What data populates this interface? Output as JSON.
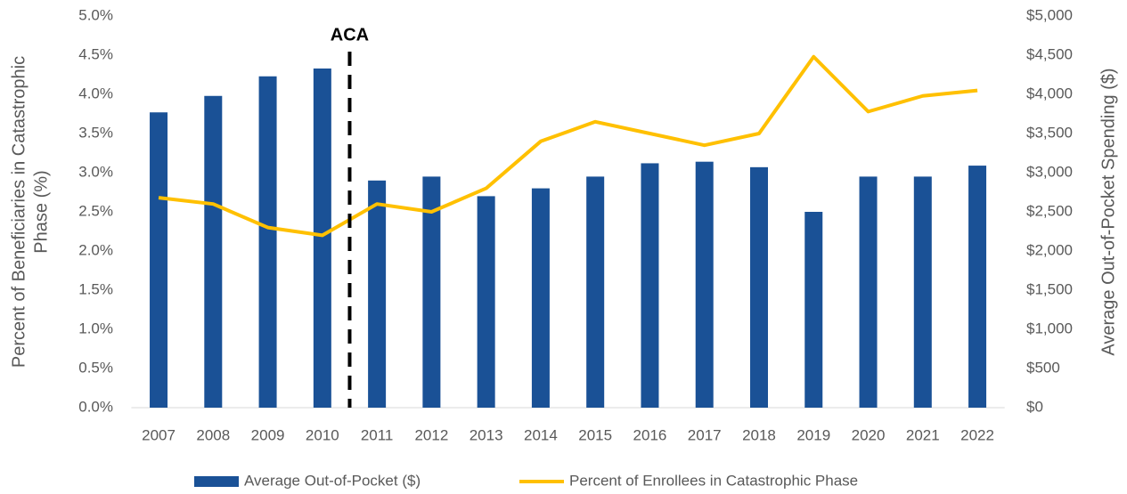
{
  "chart_data": {
    "type": "bar_line",
    "categories": [
      "2007",
      "2008",
      "2009",
      "2010",
      "2011",
      "2012",
      "2013",
      "2014",
      "2015",
      "2016",
      "2017",
      "2018",
      "2019",
      "2020",
      "2021",
      "2022"
    ],
    "series": [
      {
        "name": "Average Out-of-Pocket ($)",
        "type": "bar",
        "axis": "y2",
        "color": "#1a5196",
        "values": [
          3770,
          3980,
          4230,
          4330,
          2900,
          2950,
          2700,
          2800,
          2950,
          3120,
          3140,
          3070,
          2500,
          2950,
          2950,
          3090
        ]
      },
      {
        "name": "Percent of Enrollees in Catastrophic Phase",
        "type": "line",
        "axis": "y",
        "color": "#ffc000",
        "values": [
          2.68,
          2.6,
          2.3,
          2.2,
          2.6,
          2.5,
          2.8,
          3.4,
          3.65,
          3.5,
          3.35,
          3.5,
          4.48,
          3.78,
          3.98,
          4.05
        ]
      }
    ],
    "y_label": [
      "Percent of Beneficiaries in Catastrophic",
      "Phase (%)"
    ],
    "y2_label": "Average Out-of-Pocket Spending ($)",
    "annotation": "ACA",
    "ylim": [
      0,
      5
    ],
    "yticks": [
      {
        "value": 0,
        "label": "0.0%"
      },
      {
        "value": 0.5,
        "label": "0.5%"
      },
      {
        "value": 1,
        "label": "1.0%"
      },
      {
        "value": 1.5,
        "label": "1.5%"
      },
      {
        "value": 2,
        "label": "2.0%"
      },
      {
        "value": 2.5,
        "label": "2.5%"
      },
      {
        "value": 3,
        "label": "3.0%"
      },
      {
        "value": 3.5,
        "label": "3.5%"
      },
      {
        "value": 4,
        "label": "4.0%"
      },
      {
        "value": 4.5,
        "label": "4.5%"
      },
      {
        "value": 5,
        "label": "5.0%"
      }
    ],
    "y2lim": [
      0,
      5000
    ],
    "y2ticks": [
      {
        "value": 0,
        "label": "$0"
      },
      {
        "value": 500,
        "label": "$500"
      },
      {
        "value": 1000,
        "label": "$1,000"
      },
      {
        "value": 1500,
        "label": "$1,500"
      },
      {
        "value": 2000,
        "label": "$2,000"
      },
      {
        "value": 2500,
        "label": "$2,500"
      },
      {
        "value": 3000,
        "label": "$3,000"
      },
      {
        "value": 3500,
        "label": "$3,500"
      },
      {
        "value": 4000,
        "label": "$4,000"
      },
      {
        "value": 4500,
        "label": "$4,500"
      },
      {
        "value": 5000,
        "label": "$5,000"
      }
    ],
    "grid": false,
    "legend": "bottom"
  }
}
